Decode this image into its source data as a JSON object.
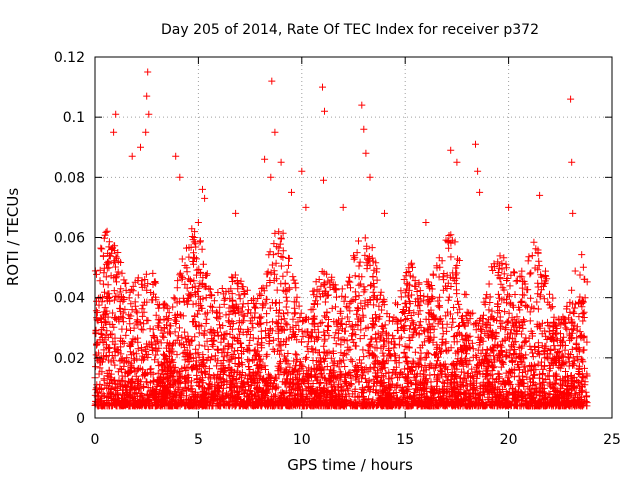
{
  "chart_data": {
    "type": "scatter",
    "title": "Day 205 of 2014, Rate Of TEC Index for receiver p372",
    "xlabel": "GPS time / hours",
    "ylabel": "ROTI / TECUs",
    "xlim": [
      0,
      25
    ],
    "ylim": [
      0,
      0.12
    ],
    "x_ticks": [
      0,
      5,
      10,
      15,
      20,
      25
    ],
    "x_tick_labels": [
      "0",
      "5",
      "10",
      "15",
      "20",
      "25"
    ],
    "y_ticks": [
      0,
      0.02,
      0.04,
      0.06,
      0.08,
      0.1,
      0.12
    ],
    "y_tick_labels": [
      "0",
      "0.02",
      "0.04",
      "0.06",
      "0.08",
      "0.1",
      "0.12"
    ],
    "grid": true,
    "marker": "+",
    "marker_color": "#ff0000",
    "series": [
      {
        "name": "ROTI",
        "x": [
          2.55,
          2.5,
          2.6,
          2.45,
          2.2,
          1.0,
          0.9,
          1.8,
          3.9,
          4.1,
          5.2,
          5.3,
          5.0,
          4.8,
          6.8,
          8.2,
          8.5,
          8.55,
          8.7,
          9.0,
          9.5,
          10.0,
          10.2,
          11.0,
          11.1,
          11.05,
          12.0,
          12.9,
          13.0,
          13.1,
          13.3,
          14.0,
          16.0,
          17.2,
          17.5,
          18.4,
          18.5,
          18.6,
          20.0,
          21.5,
          23.0,
          23.05,
          23.1,
          23.7
        ],
        "y": [
          0.115,
          0.107,
          0.101,
          0.095,
          0.09,
          0.101,
          0.095,
          0.087,
          0.087,
          0.08,
          0.076,
          0.073,
          0.065,
          0.06,
          0.068,
          0.086,
          0.08,
          0.112,
          0.095,
          0.085,
          0.075,
          0.082,
          0.07,
          0.11,
          0.102,
          0.079,
          0.07,
          0.104,
          0.096,
          0.088,
          0.08,
          0.068,
          0.065,
          0.089,
          0.085,
          0.091,
          0.082,
          0.075,
          0.07,
          0.074,
          0.106,
          0.085,
          0.068,
          0.04
        ],
        "density": {
          "x_range": [
            0,
            23.8
          ],
          "y_floor": 0.004,
          "typical_ceiling_range": [
            0.03,
            0.06
          ]
        }
      }
    ]
  }
}
